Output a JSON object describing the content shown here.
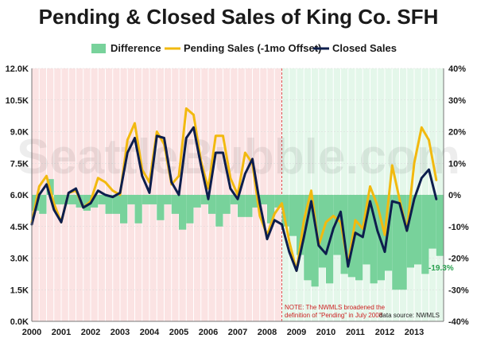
{
  "chart_data": {
    "type": "line",
    "title": "Pending & Closed Sales of King Co. SFH",
    "watermark": "SeattleBubble.com",
    "legend": {
      "position": "top",
      "entries": [
        {
          "name": "Difference",
          "color": "#78d29b",
          "kind": "bar"
        },
        {
          "name": "Pending Sales (-1mo Offset)",
          "color": "#f2b90f",
          "kind": "line"
        },
        {
          "name": "Closed Sales",
          "color": "#0d1e4d",
          "kind": "line"
        }
      ]
    },
    "colors": {
      "difference": "#78d29b",
      "pending": "#f2b90f",
      "closed": "#0d1e4d",
      "shade_before": "#fbe3e3",
      "shade_after": "#e4f7ea",
      "note_line": "#e05555"
    },
    "x_axis": {
      "unit": "quarter",
      "range": [
        2000.0,
        2014.0
      ],
      "tick_labels": [
        "2000",
        "2001",
        "2002",
        "2003",
        "2004",
        "2005",
        "2006",
        "2007",
        "2008",
        "2009",
        "2010",
        "2011",
        "2012",
        "2013"
      ]
    },
    "y_left": {
      "range": [
        0,
        12000
      ],
      "tick_values": [
        0,
        1500,
        3000,
        4500,
        6000,
        7500,
        9000,
        10500,
        12000
      ],
      "tick_labels": [
        "0.0K",
        "1.5K",
        "3.0K",
        "4.5K",
        "6.0K",
        "7.5K",
        "9.0K",
        "10.5K",
        "12.0K"
      ]
    },
    "y_right": {
      "range": [
        -40,
        40
      ],
      "tick_values": [
        -40,
        -30,
        -20,
        -10,
        0,
        10,
        20,
        30,
        40
      ],
      "tick_labels": [
        "-40%",
        "-30%",
        "-20%",
        "-10%",
        "0%",
        "10%",
        "20%",
        "30%",
        "40%"
      ]
    },
    "definition_change": "2008.5",
    "x": [
      2000.0,
      2000.25,
      2000.5,
      2000.75,
      2001.0,
      2001.25,
      2001.5,
      2001.75,
      2002.0,
      2002.25,
      2002.5,
      2002.75,
      2003.0,
      2003.25,
      2003.5,
      2003.75,
      2004.0,
      2004.25,
      2004.5,
      2004.75,
      2005.0,
      2005.25,
      2005.5,
      2005.75,
      2006.0,
      2006.25,
      2006.5,
      2006.75,
      2007.0,
      2007.25,
      2007.5,
      2007.75,
      2008.0,
      2008.25,
      2008.5,
      2008.75,
      2009.0,
      2009.25,
      2009.5,
      2009.75,
      2010.0,
      2010.25,
      2010.5,
      2010.75,
      2011.0,
      2011.25,
      2011.5,
      2011.75,
      2012.0,
      2012.25,
      2012.5,
      2012.75,
      2013.0,
      2013.25,
      2013.5,
      2013.75
    ],
    "series": [
      {
        "name": "Pending Sales (-1mo Offset)",
        "axis": "left",
        "values": [
          4700,
          6400,
          6900,
          5600,
          4700,
          6100,
          6200,
          5400,
          5700,
          6800,
          6600,
          6200,
          6000,
          8600,
          9400,
          7200,
          6600,
          9000,
          8400,
          6500,
          6900,
          10100,
          9800,
          7600,
          6300,
          8800,
          8800,
          6800,
          6000,
          8000,
          7500,
          5000,
          4100,
          5100,
          5600,
          3800,
          2400,
          4800,
          6200,
          3600,
          4700,
          5000,
          4700,
          2700,
          4800,
          4400,
          6400,
          5500,
          4100,
          7400,
          5800,
          4300,
          7500,
          9200,
          8600,
          6700
        ]
      },
      {
        "name": "Closed Sales",
        "axis": "left",
        "values": [
          4600,
          6000,
          6500,
          5300,
          4700,
          6100,
          6300,
          5400,
          5600,
          6200,
          6000,
          5900,
          6100,
          8000,
          8700,
          6900,
          6100,
          8800,
          8700,
          6600,
          6000,
          8700,
          9200,
          7400,
          5800,
          8000,
          8000,
          6300,
          5800,
          7000,
          7700,
          5600,
          3900,
          4800,
          4600,
          3300,
          2400,
          4000,
          5700,
          3600,
          3200,
          4400,
          5200,
          2600,
          4200,
          4000,
          5700,
          4300,
          3300,
          5700,
          5600,
          4300,
          5800,
          6800,
          7200,
          5800
        ]
      },
      {
        "name": "Difference",
        "axis": "right",
        "kind": "bar",
        "values": [
          -5,
          -6,
          5,
          -3,
          -3,
          -3,
          -4,
          -5,
          -4,
          -3,
          -6,
          -6,
          -9,
          -3,
          -9,
          -3,
          -3,
          -8,
          -3,
          -6,
          -11,
          -9,
          -4,
          -3,
          -6,
          -10,
          -6,
          -3,
          -7,
          -7,
          -4,
          -3,
          -9,
          -4,
          -10,
          -13,
          -19,
          -27,
          -29,
          -23,
          -28,
          -19,
          -25,
          -26,
          -27,
          -22,
          -28,
          -27,
          -24,
          -30,
          -30,
          -23,
          -22,
          -25,
          -17,
          -19.3
        ]
      }
    ],
    "last_value_label": "-19.3%",
    "annotation": "NOTE: The NWMLS broadened the definition of \"Pending\" in July 2008",
    "source_note": "data source: NWMLS"
  }
}
